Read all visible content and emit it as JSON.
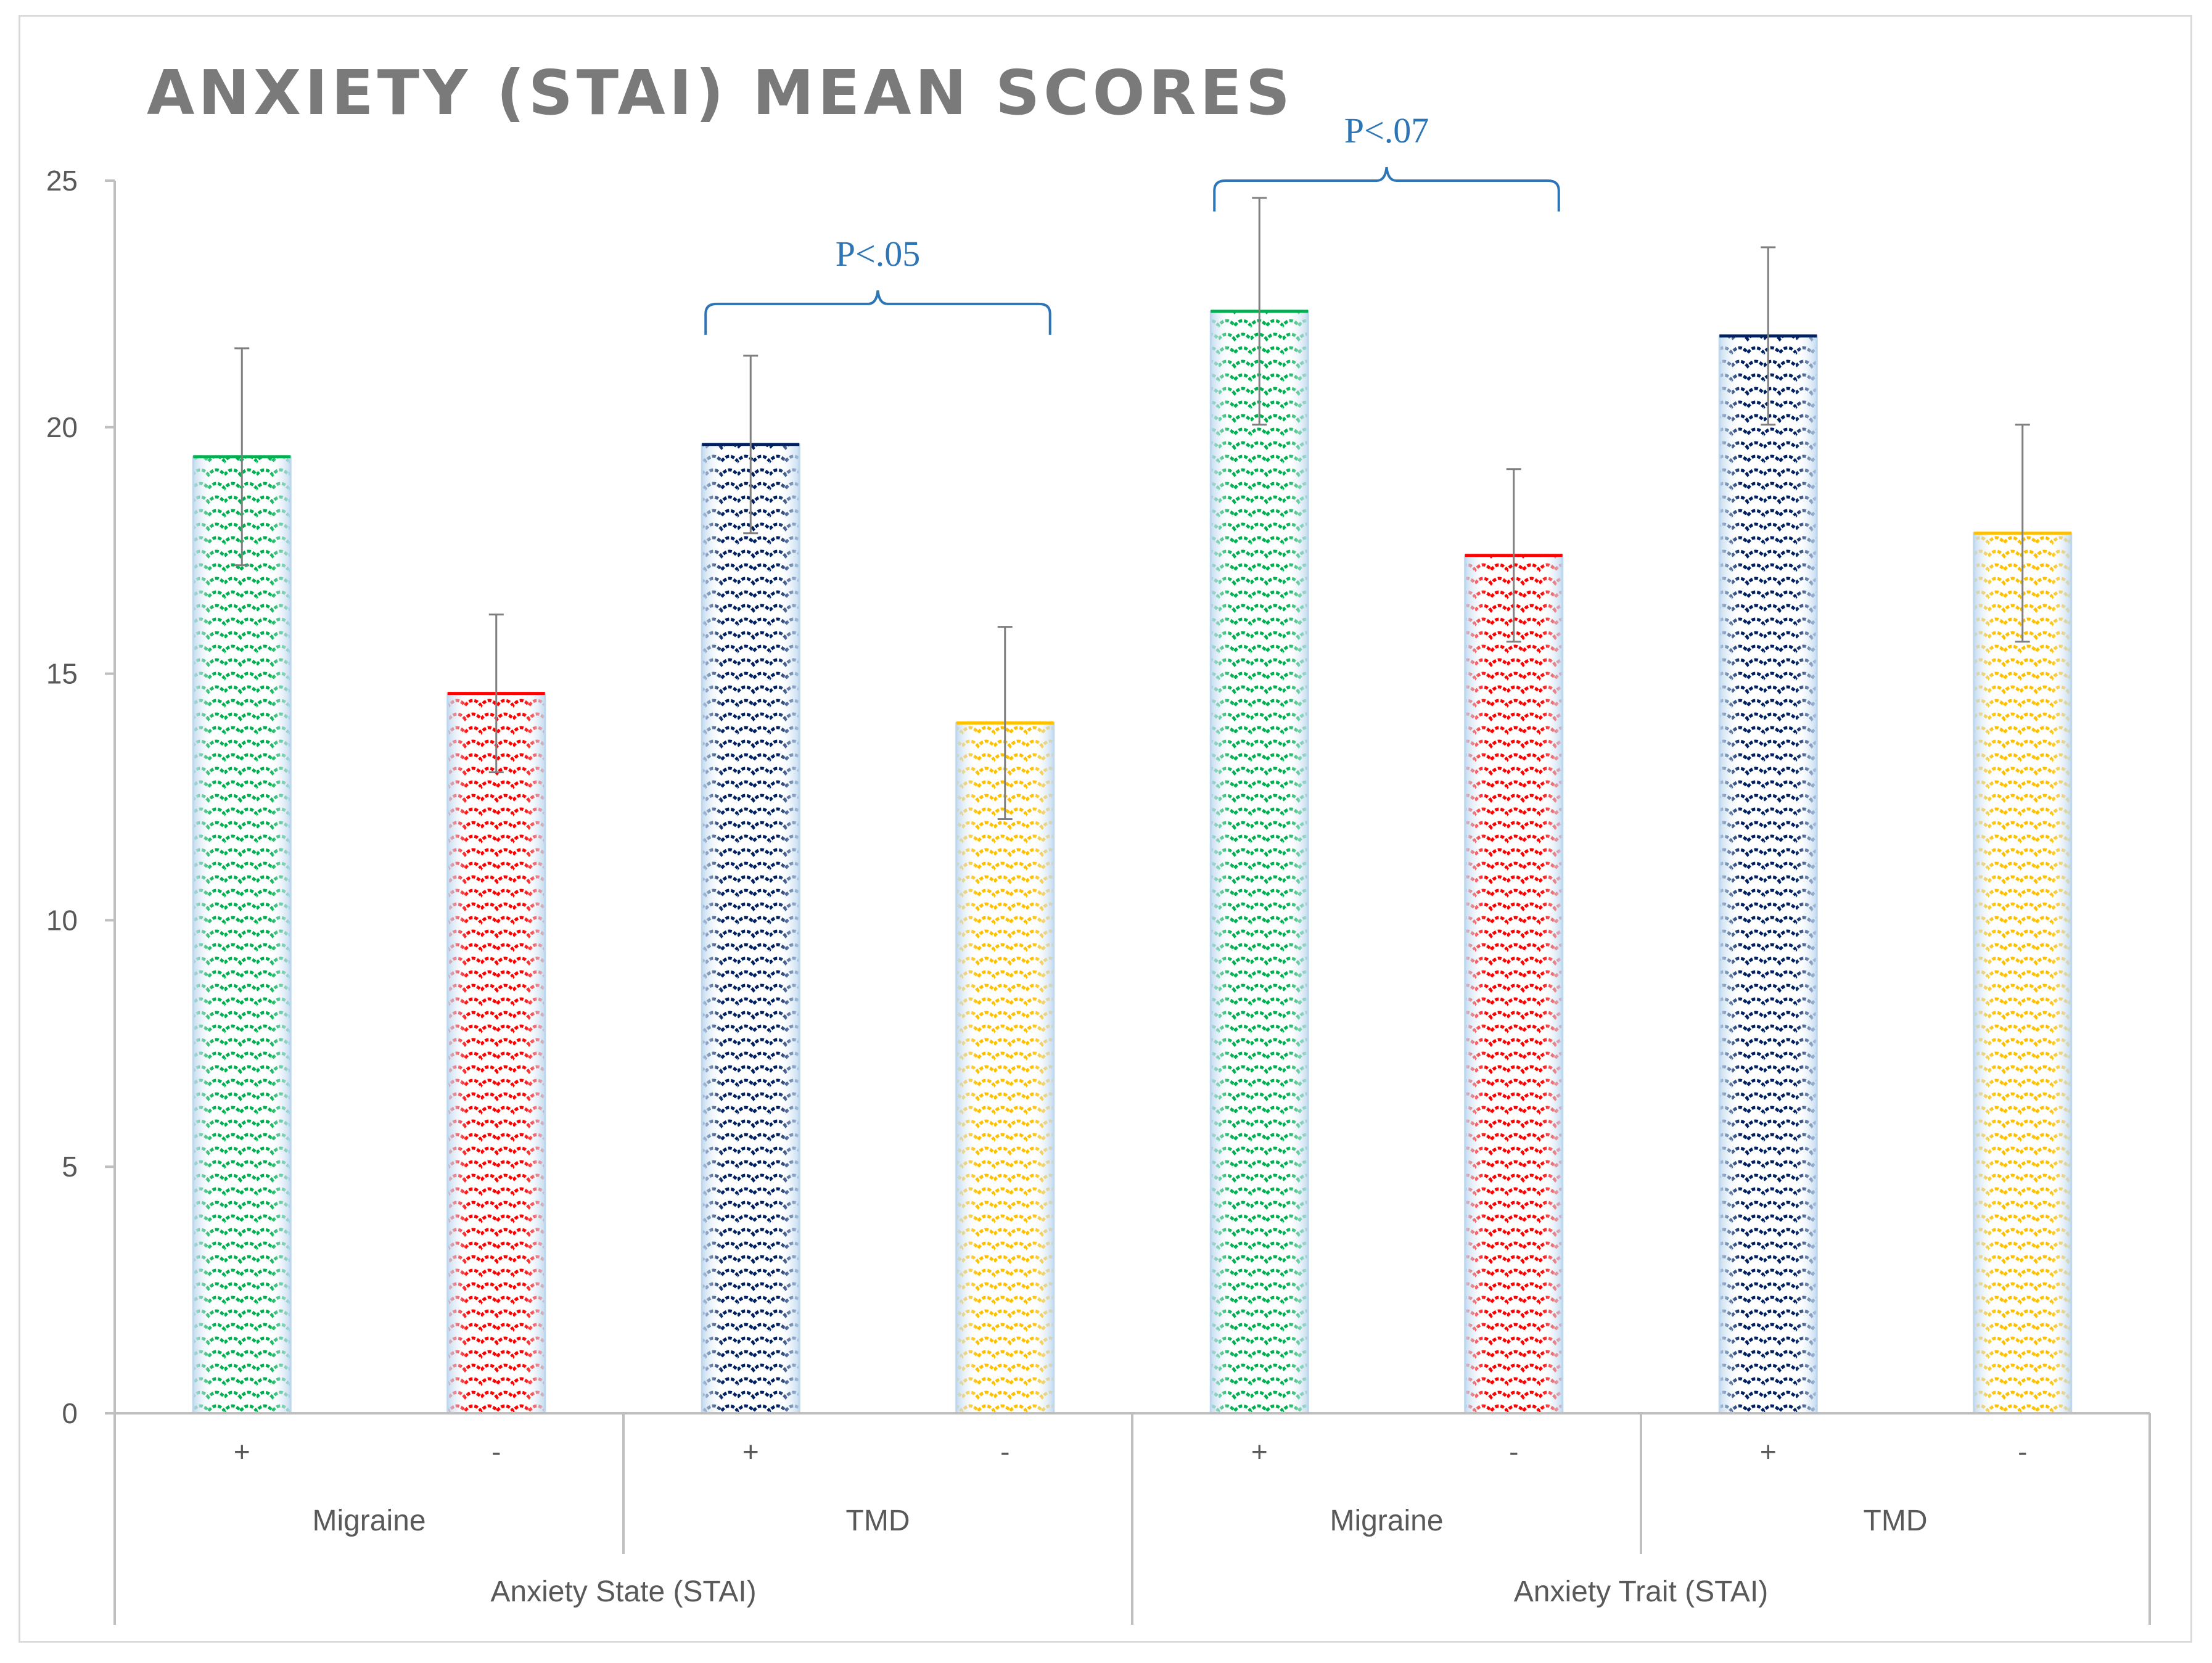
{
  "chart_data": {
    "type": "bar",
    "title": "ANXIETY (STAI) MEAN SCORES",
    "xlabel": "",
    "ylabel": "",
    "ylim": [
      0,
      25
    ],
    "yticks": [
      0,
      5,
      10,
      15,
      20,
      25
    ],
    "grid": false,
    "legend": "none",
    "levels": {
      "groups": [
        "Anxiety State (STAI)",
        "Anxiety Trait (STAI)"
      ],
      "conditions": [
        "Migraine",
        "TMD",
        "Migraine",
        "TMD"
      ],
      "signs": [
        "+",
        "-",
        "+",
        "-",
        "+",
        "-",
        "+",
        "-"
      ]
    },
    "bars": [
      {
        "group": "Anxiety State (STAI)",
        "condition": "Migraine",
        "sign": "+",
        "value": 19.4,
        "error": 2.2,
        "color": "#00b050",
        "pattern": "scales"
      },
      {
        "group": "Anxiety State (STAI)",
        "condition": "Migraine",
        "sign": "-",
        "value": 14.6,
        "error": 1.6,
        "color": "#ff0000",
        "pattern": "scales"
      },
      {
        "group": "Anxiety State (STAI)",
        "condition": "TMD",
        "sign": "+",
        "value": 19.65,
        "error": 1.8,
        "color": "#002060",
        "pattern": "scales"
      },
      {
        "group": "Anxiety State (STAI)",
        "condition": "TMD",
        "sign": "-",
        "value": 14.0,
        "error": 1.95,
        "color": "#ffc000",
        "pattern": "scales"
      },
      {
        "group": "Anxiety Trait (STAI)",
        "condition": "Migraine",
        "sign": "+",
        "value": 22.35,
        "error": 2.3,
        "color": "#00b050",
        "pattern": "scales"
      },
      {
        "group": "Anxiety Trait (STAI)",
        "condition": "Migraine",
        "sign": "-",
        "value": 17.4,
        "error": 1.75,
        "color": "#ff0000",
        "pattern": "scales"
      },
      {
        "group": "Anxiety Trait (STAI)",
        "condition": "TMD",
        "sign": "+",
        "value": 21.85,
        "error": 1.8,
        "color": "#002060",
        "pattern": "scales"
      },
      {
        "group": "Anxiety Trait (STAI)",
        "condition": "TMD",
        "sign": "-",
        "value": 17.85,
        "error": 2.2,
        "color": "#ffc000",
        "pattern": "scales"
      }
    ],
    "annotations": [
      {
        "text": "P<.05",
        "from_bar": 2,
        "to_bar": 3,
        "bracket_y": 22.5
      },
      {
        "text": "P<.07",
        "from_bar": 4,
        "to_bar": 5,
        "bracket_y": 25.0
      }
    ],
    "colors": {
      "axis": "#bfbfbf",
      "tick_text": "#595959",
      "title": "#7a7a7a",
      "error_bar": "#7f7f7f",
      "annotation": "#2e75b6",
      "bar_border": "#bdd7ee"
    }
  }
}
